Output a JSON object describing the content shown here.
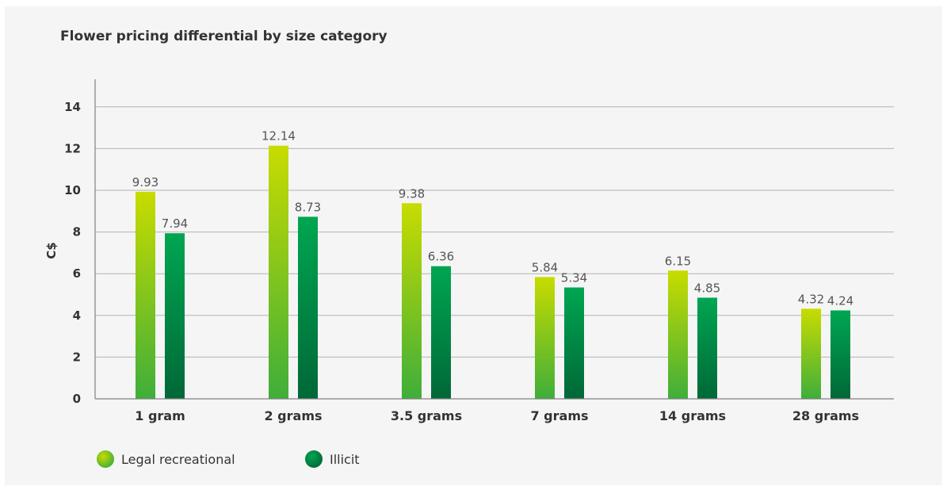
{
  "colors": {
    "legal_top": "#c8dc00",
    "legal_bottom": "#3fae3a",
    "illicit_top": "#00a651",
    "illicit_bottom": "#006837",
    "grid": "#b3b3b3",
    "axis": "#808080"
  },
  "chart_data": {
    "type": "bar",
    "title": "Flower pricing differential by size category",
    "xlabel": "",
    "ylabel": "C$",
    "ylim": [
      0,
      15
    ],
    "yticks": [
      "0",
      "2",
      "4",
      "6",
      "8",
      "10",
      "12",
      "14"
    ],
    "grid": true,
    "legend_position": "bottom-left",
    "categories": [
      "1 gram",
      "2 grams",
      "3.5 grams",
      "7 grams",
      "14 grams",
      "28 grams"
    ],
    "series": [
      {
        "name": "Legal recreational",
        "values": [
          9.93,
          12.14,
          9.38,
          5.84,
          6.15,
          4.32
        ],
        "labels": [
          "9.93",
          "12.14",
          "9.38",
          "5.84",
          "6.15",
          "4.32"
        ]
      },
      {
        "name": "Illicit",
        "values": [
          7.94,
          8.73,
          6.36,
          5.34,
          4.85,
          4.24
        ],
        "labels": [
          "7.94",
          "8.73",
          "6.36",
          "5.34",
          "4.85",
          "4.24"
        ]
      }
    ]
  }
}
